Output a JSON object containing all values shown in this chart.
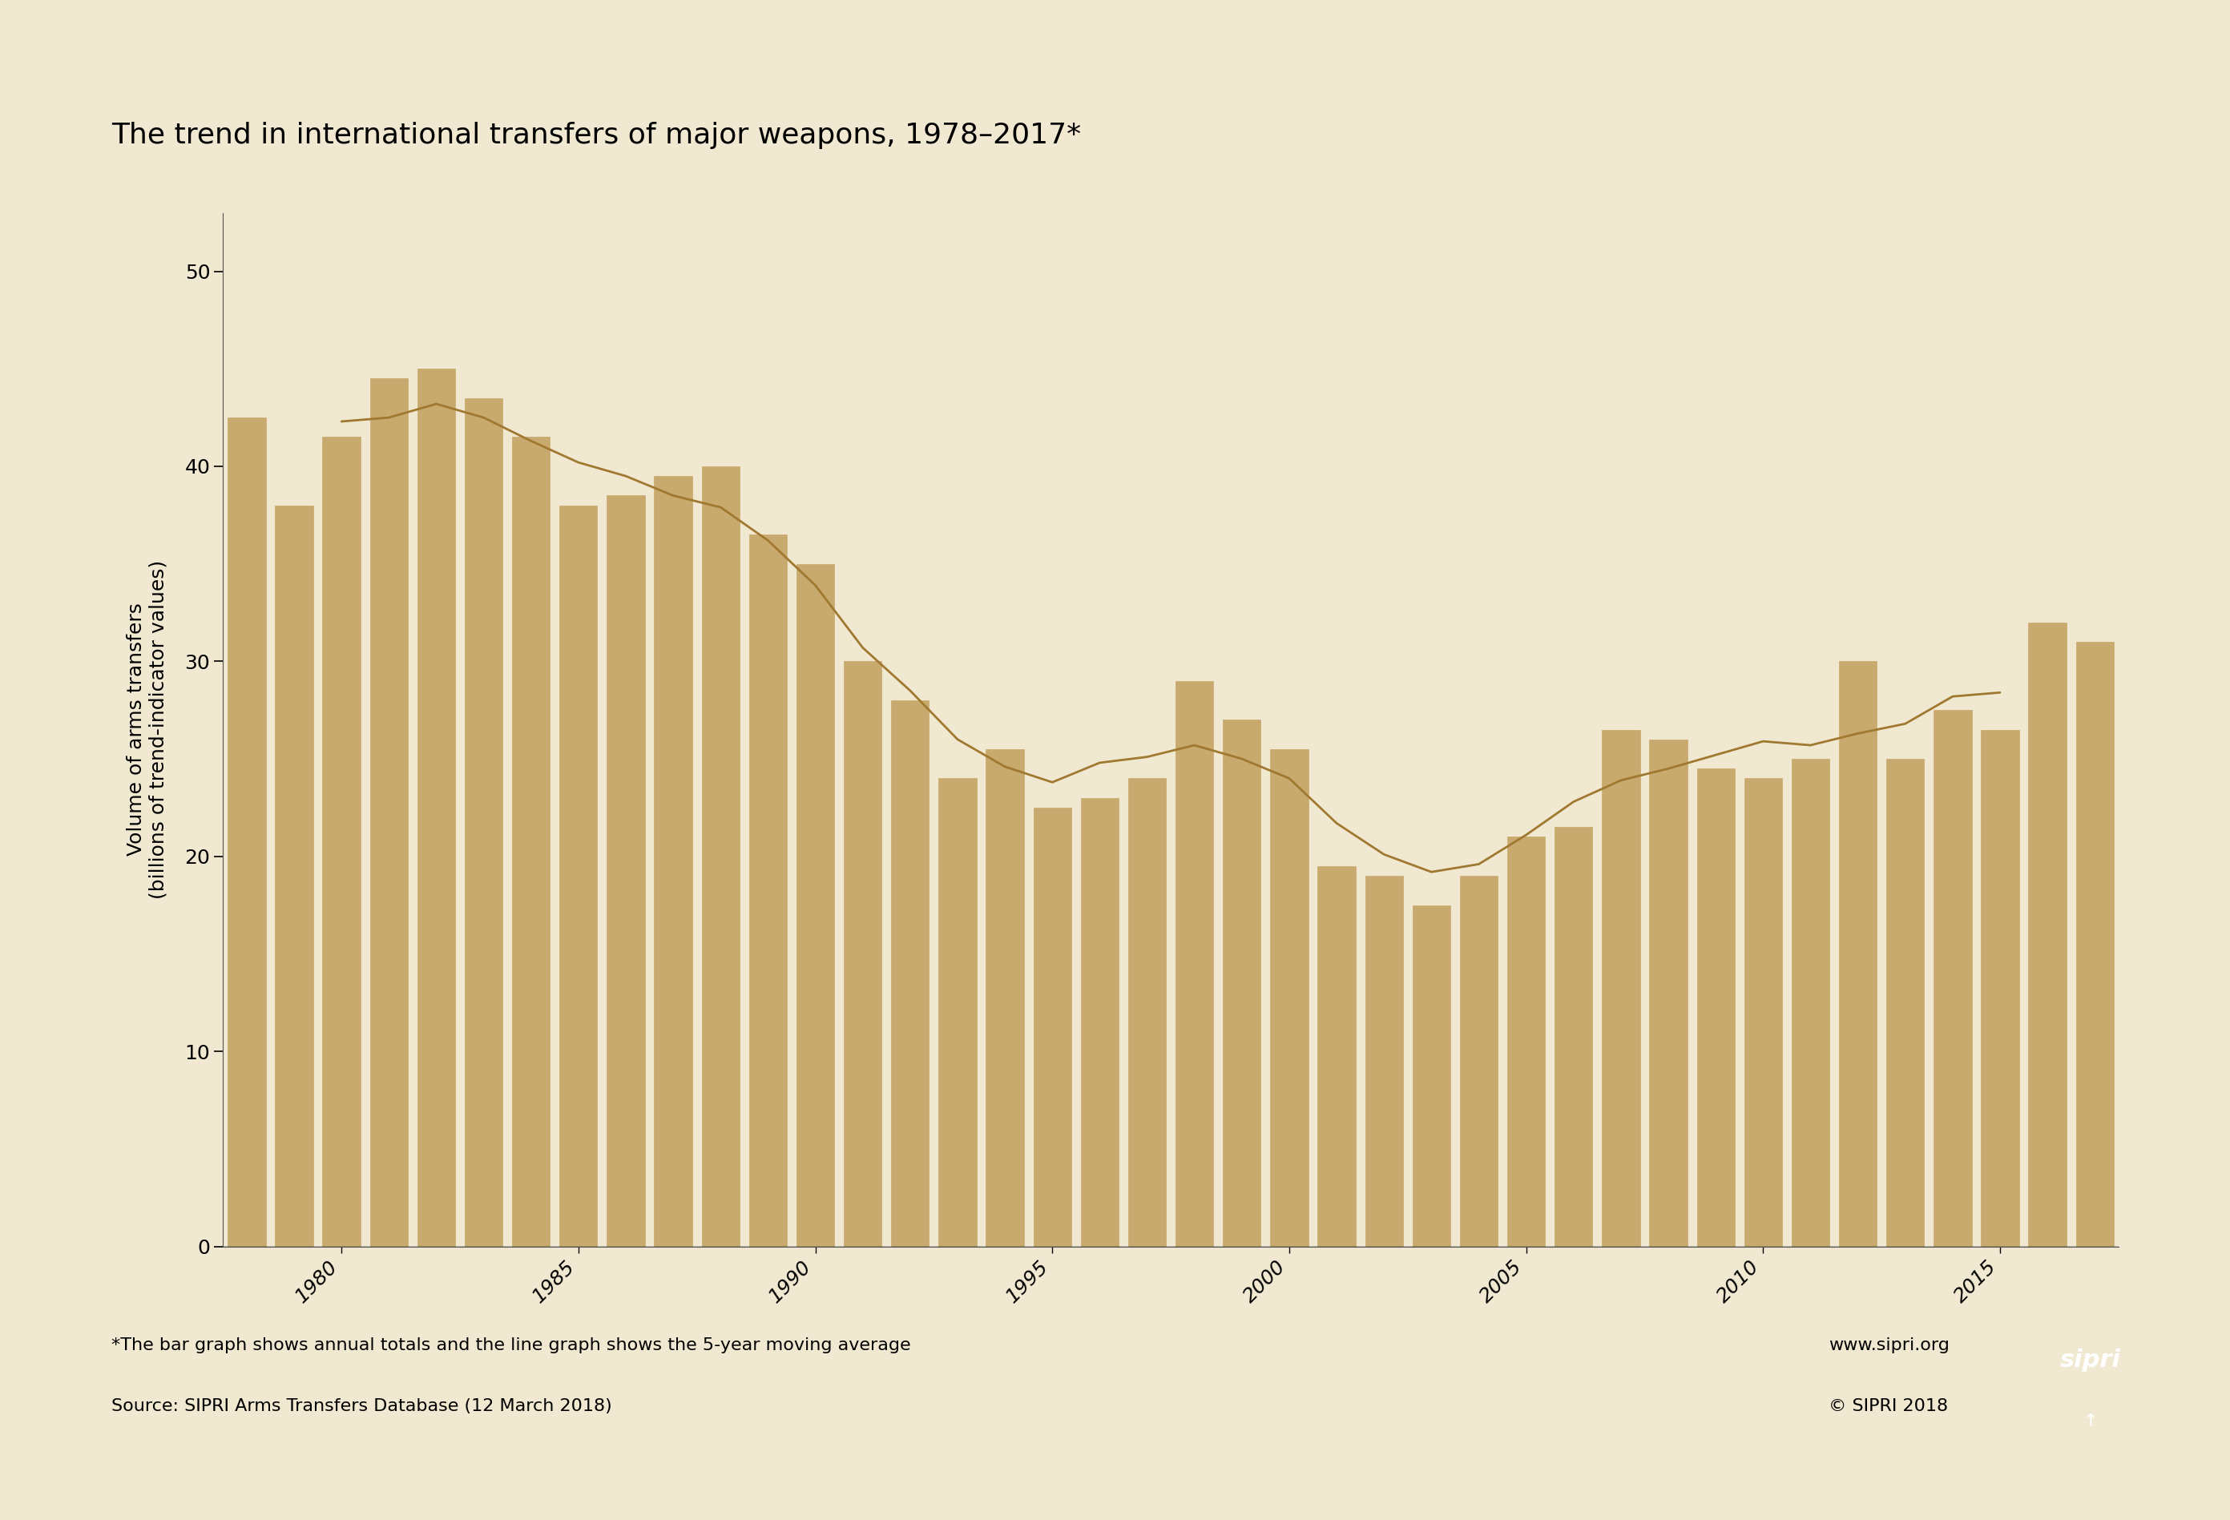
{
  "title": "The trend in international transfers of major weapons, 1978–2017*",
  "ylabel_line1": "Volume of arms transfers",
  "ylabel_line2": "(billions of trend-indicator values)",
  "footnote1": "*The bar graph shows annual totals and the line graph shows the 5-year moving average",
  "footnote2": "Source: SIPRI Arms Transfers Database (12 March 2018)",
  "website": "www.sipri.org",
  "copyright": "© SIPRI 2018",
  "years": [
    1978,
    1979,
    1980,
    1981,
    1982,
    1983,
    1984,
    1985,
    1986,
    1987,
    1988,
    1989,
    1990,
    1991,
    1992,
    1993,
    1994,
    1995,
    1996,
    1997,
    1998,
    1999,
    2000,
    2001,
    2002,
    2003,
    2004,
    2005,
    2006,
    2007,
    2008,
    2009,
    2010,
    2011,
    2012,
    2013,
    2014,
    2015,
    2016,
    2017
  ],
  "values": [
    42.5,
    38.0,
    41.5,
    44.5,
    45.0,
    43.5,
    41.5,
    38.0,
    38.5,
    39.5,
    40.0,
    36.5,
    35.0,
    30.0,
    28.0,
    24.0,
    25.5,
    22.5,
    23.0,
    24.0,
    29.0,
    27.0,
    25.5,
    19.5,
    19.0,
    17.5,
    19.0,
    21.0,
    21.5,
    26.5,
    26.0,
    24.5,
    24.0,
    25.0,
    30.0,
    25.0,
    27.5,
    26.5,
    32.0,
    31.0
  ],
  "bar_color": "#C8A96E",
  "line_color": "#A07830",
  "background_color": "#F0E8D0",
  "axis_background": "#F0E8D0",
  "yticks": [
    0,
    10,
    20,
    30,
    40,
    50
  ],
  "xtick_years": [
    1980,
    1985,
    1990,
    1995,
    2000,
    2005,
    2010,
    2015
  ],
  "ylim": [
    0,
    53
  ],
  "title_fontsize": 26,
  "axis_fontsize": 18,
  "tick_fontsize": 18,
  "footnote_fontsize": 16,
  "sipri_box_color": "#9B2335",
  "sipri_text_color": "#FFFFFF"
}
